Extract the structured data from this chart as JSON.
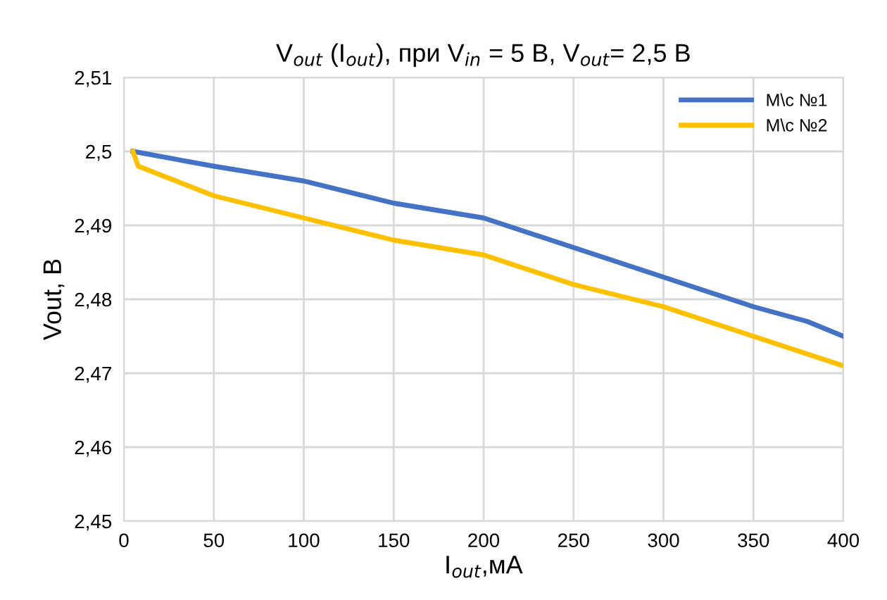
{
  "chart_data": {
    "type": "line",
    "title": "V$_{out}$ (I$_{out}$), при V$_{in}$ = 5 В, V$_{out}$= 2,5 В",
    "xlabel": "I$_{out}$,мА",
    "ylabel": "Vout, В",
    "series": [
      {
        "name": "M\\c №1",
        "color": "#4472c4",
        "x": [
          5,
          50,
          100,
          150,
          200,
          250,
          300,
          350,
          380,
          400
        ],
        "values": [
          2.5,
          2.498,
          2.496,
          2.493,
          2.491,
          2.487,
          2.483,
          2.479,
          2.477,
          2.475
        ]
      },
      {
        "name": "M\\c №2",
        "color": "#ffc000",
        "x": [
          5,
          8,
          50,
          100,
          150,
          200,
          250,
          300,
          350,
          400
        ],
        "values": [
          2.5,
          2.498,
          2.494,
          2.491,
          2.488,
          2.486,
          2.482,
          2.479,
          2.475,
          2.471
        ]
      }
    ],
    "xlim": [
      0,
      400
    ],
    "xticks": [
      0,
      50,
      100,
      150,
      200,
      250,
      300,
      350,
      400
    ],
    "ylim": [
      2.45,
      2.51
    ],
    "yticks": [
      {
        "value": 2.45,
        "label": "2,45"
      },
      {
        "value": 2.46,
        "label": "2,46"
      },
      {
        "value": 2.47,
        "label": "2,47"
      },
      {
        "value": 2.48,
        "label": "2,48"
      },
      {
        "value": 2.49,
        "label": "2,49"
      },
      {
        "value": 2.5,
        "label": "2,5"
      },
      {
        "value": 2.51,
        "label": "2,51"
      }
    ],
    "grid": true,
    "legend": "top right",
    "marker": "none",
    "line_style": "solid"
  }
}
